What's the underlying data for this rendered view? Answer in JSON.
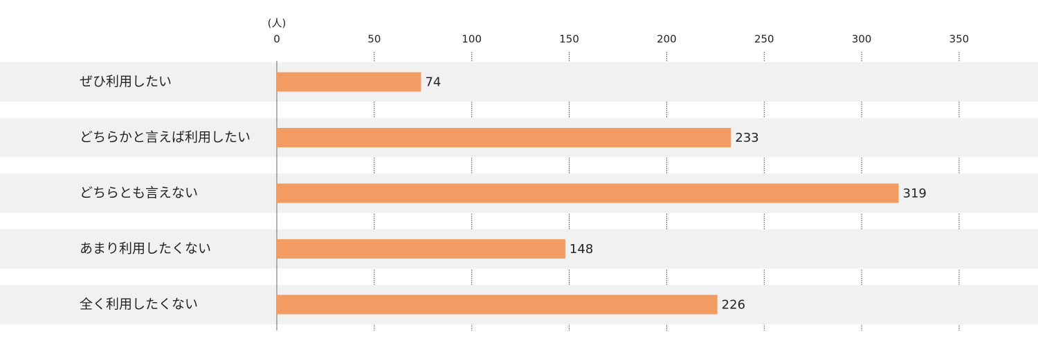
{
  "chart_data": {
    "type": "barh",
    "xlabel": "(人)",
    "categories": [
      "ぜひ利用したい",
      "どちらかと言えば利用したい",
      "どちらとも言えない",
      "あまり利用したくない",
      "全く利用したくない"
    ],
    "values": [
      74,
      233,
      319,
      148,
      226
    ],
    "color": "#f29c63",
    "xlim": [
      0,
      350
    ],
    "xticks": [
      0,
      50,
      100,
      150,
      200,
      250,
      300,
      350
    ],
    "grid": true
  }
}
